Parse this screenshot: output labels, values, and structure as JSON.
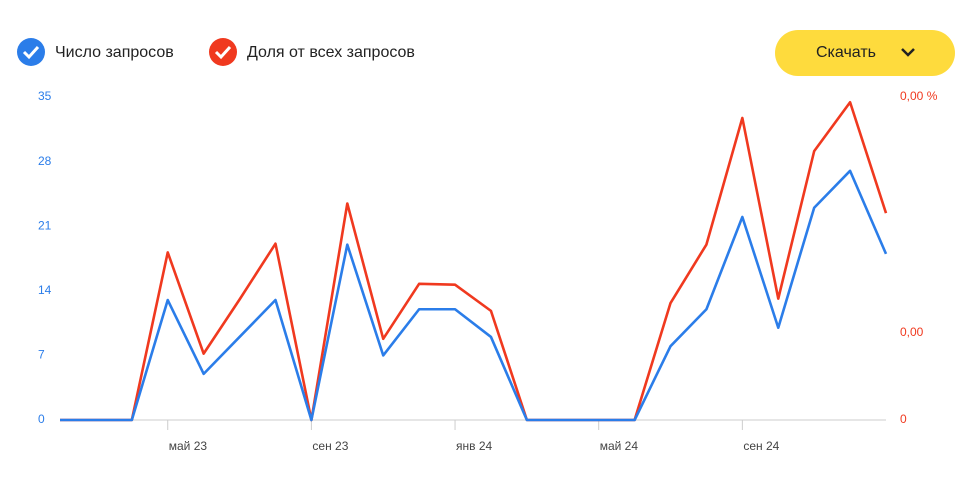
{
  "download_button": "Скачать",
  "chart_data": {
    "type": "line",
    "categories": [
      null,
      null,
      null,
      "май 23",
      null,
      null,
      null,
      "сен 23",
      null,
      null,
      null,
      "янв 24",
      null,
      null,
      null,
      "май 24",
      null,
      null,
      null,
      "сен 24",
      null,
      null,
      null,
      null
    ],
    "series": [
      {
        "name": "Число запросов",
        "color": "#2b7de9",
        "values": [
          0,
          0,
          0,
          13,
          5,
          9,
          13,
          0,
          19,
          7,
          12,
          12,
          9,
          0,
          0,
          0,
          0,
          8,
          12,
          22,
          10,
          23,
          27,
          18
        ]
      },
      {
        "name": "Доля от всех запросов",
        "color": "#f0391f",
        "axis": "y2",
        "values": [
          0,
          0,
          0,
          0.00192,
          0.00076,
          0.00138,
          0.00202,
          0,
          0.00248,
          0.00093,
          0.00156,
          0.00155,
          0.00125,
          0,
          0,
          0,
          0,
          0.00134,
          0.00201,
          0.00346,
          0.00139,
          0.00308,
          0.00364,
          0.00237
        ]
      }
    ],
    "ylim": [
      0,
      35
    ],
    "yticks": [
      0,
      7,
      14,
      21,
      28,
      35
    ],
    "y2lim": [
      0,
      0.0037
    ],
    "y2ticks": [
      0,
      {
        "value": 0.001,
        "label": "0,00"
      },
      {
        "value": 0.0037,
        "label": "0,00 %"
      }
    ],
    "grid": false
  }
}
